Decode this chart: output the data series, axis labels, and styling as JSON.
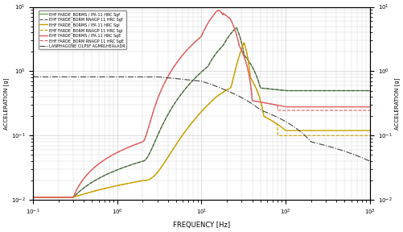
{
  "xlabel": "FREQUENCY [Hz]",
  "ylabel_left": "ACCELERATION [g]",
  "ylabel_right": "ACCELERATION [g]",
  "xlim": [
    0.1,
    1000
  ],
  "ylim": [
    0.01,
    10
  ],
  "legend": [
    {
      "label": "EHF FARDE_BORMS / IFA 11 HRC Sgf",
      "color": "#6aaa55",
      "ls": "solid",
      "lw": 1.0
    },
    {
      "label": "EHF FARDE_BORM RNAGP 11 HRC Sgf",
      "color": "#555555",
      "ls": "dashed",
      "lw": 0.8
    },
    {
      "label": "EHF FARDE_BORMS / IFA 11 HRC Sgl",
      "color": "#c8a000",
      "ls": "solid",
      "lw": 1.0
    },
    {
      "label": "EHF FARDE_BORM RNAGP 11 HRC Sgl",
      "color": "#c8a000",
      "ls": "dashed",
      "lw": 0.8
    },
    {
      "label": "EHF FARDE_BORMS / IFA 11 HRC SgE",
      "color": "#e06060",
      "ls": "solid",
      "lw": 1.0
    },
    {
      "label": "EHF FARDE_BORM RNAGP 11 HRC SgE",
      "color": "#e06060",
      "ls": "dashed",
      "lw": 0.8
    },
    {
      "label": "LANPHAGONE CILPSF AGMRLHEALADR",
      "color": "#444444",
      "ls": "dashdot",
      "lw": 0.8
    }
  ],
  "grid_color": "#d0d0d0",
  "bg_color": "#ffffff"
}
